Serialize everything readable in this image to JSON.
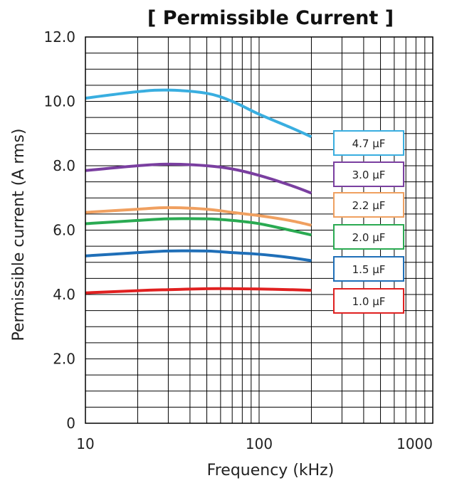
{
  "chart_data": {
    "type": "line",
    "title": "[ Permissible Current ]",
    "xlabel": "Frequency (kHz)",
    "ylabel": "Permissible current  (A rms)",
    "x_scale": "log",
    "xlim": [
      10,
      1000
    ],
    "ylim": [
      0,
      12
    ],
    "x_tick_labels": [
      "10",
      "100",
      "1000"
    ],
    "x_tick_values": [
      10,
      100,
      1000
    ],
    "y_tick_labels": [
      "0",
      "2.0",
      "4.0",
      "6.0",
      "8.0",
      "10.0",
      "12.0"
    ],
    "y_tick_values": [
      0,
      2,
      4,
      6,
      8,
      10,
      12
    ],
    "grid": true,
    "legend_position": "right",
    "series": [
      {
        "name": "4.7 μF",
        "color": "#39aee0",
        "x": [
          10,
          20,
          30,
          50,
          70,
          100,
          150,
          200
        ],
        "y": [
          10.1,
          10.3,
          10.35,
          10.25,
          10.0,
          9.6,
          9.2,
          8.9
        ]
      },
      {
        "name": "3.0 μF",
        "color": "#7a3fa0",
        "x": [
          10,
          20,
          30,
          50,
          70,
          100,
          150,
          200
        ],
        "y": [
          7.85,
          8.0,
          8.05,
          8.0,
          7.9,
          7.7,
          7.4,
          7.15
        ]
      },
      {
        "name": "2.2 μF",
        "color": "#f0a060",
        "x": [
          10,
          20,
          30,
          50,
          70,
          100,
          150,
          200
        ],
        "y": [
          6.55,
          6.65,
          6.7,
          6.65,
          6.55,
          6.45,
          6.3,
          6.15
        ]
      },
      {
        "name": "2.0 μF",
        "color": "#2aaa52",
        "x": [
          10,
          20,
          30,
          50,
          70,
          100,
          150,
          200
        ],
        "y": [
          6.2,
          6.3,
          6.35,
          6.35,
          6.3,
          6.2,
          6.0,
          5.85
        ]
      },
      {
        "name": "1.5 μF",
        "color": "#1f6fb8",
        "x": [
          10,
          20,
          30,
          50,
          70,
          100,
          150,
          200
        ],
        "y": [
          5.2,
          5.3,
          5.35,
          5.35,
          5.3,
          5.25,
          5.15,
          5.05
        ]
      },
      {
        "name": "1.0 μF",
        "color": "#e02020",
        "x": [
          10,
          20,
          30,
          50,
          70,
          100,
          150,
          200
        ],
        "y": [
          4.05,
          4.12,
          4.15,
          4.18,
          4.18,
          4.17,
          4.15,
          4.13
        ]
      }
    ]
  }
}
